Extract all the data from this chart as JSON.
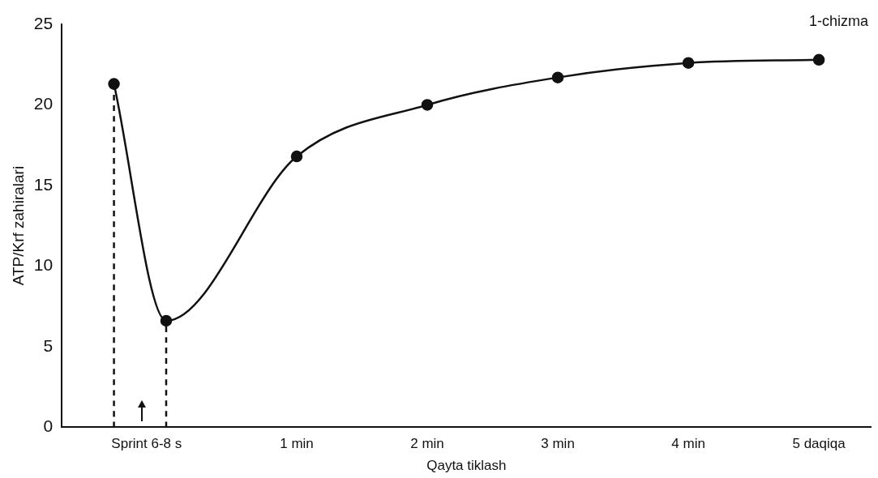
{
  "chart_data": {
    "type": "line",
    "ylabel": "ATP/Krf zahiralari",
    "xlabel": "Qayta tiklash",
    "annotations": [
      "1-chizma"
    ],
    "xlim": [
      -0.8,
      5.4
    ],
    "ylim": [
      0,
      25
    ],
    "xticks": [
      {
        "value": -0.15,
        "label": "Sprint 6-8 s"
      },
      {
        "value": 1,
        "label": "1 min"
      },
      {
        "value": 2,
        "label": "2 min"
      },
      {
        "value": 3,
        "label": "3 min"
      },
      {
        "value": 4,
        "label": "4 min"
      },
      {
        "value": 5,
        "label": "5 daqiqa"
      }
    ],
    "yticks": [
      0,
      5,
      10,
      15,
      20,
      25
    ],
    "grid": false,
    "legend": false,
    "marker": "circle",
    "line_style": "solid",
    "series": [
      {
        "color": "#111111",
        "x": [
          -0.4,
          0,
          1,
          2,
          3,
          4,
          5
        ],
        "values": [
          21.3,
          6.6,
          16.8,
          20,
          21.7,
          22.6,
          22.8
        ]
      },
      {
        "color": "#111111",
        "x": [
          -0.4,
          -0.4
        ],
        "values": [
          0,
          21.3
        ],
        "line_style": "dashed",
        "marker": "none"
      },
      {
        "color": "#111111",
        "x": [
          0,
          0
        ],
        "values": [
          0,
          6.6
        ],
        "line_style": "dashed",
        "marker": "none"
      }
    ]
  }
}
